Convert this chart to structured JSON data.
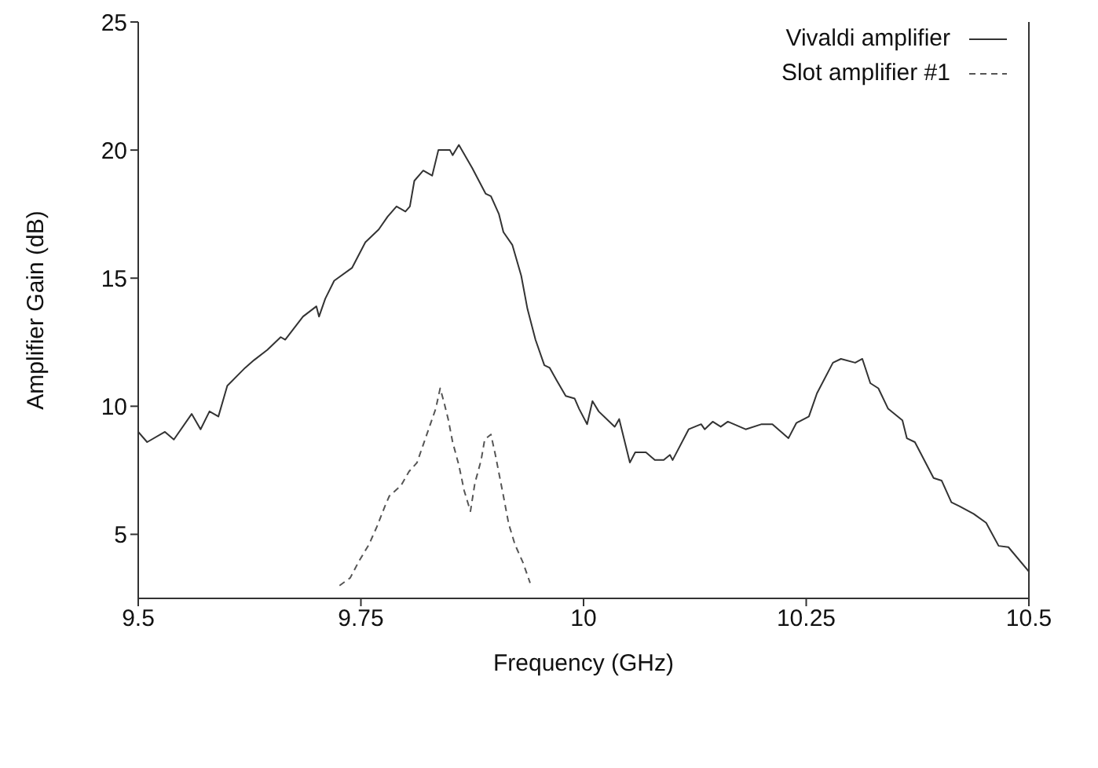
{
  "chart_data": {
    "type": "line",
    "xlabel": "Frequency (GHz)",
    "ylabel": "Amplifier Gain (dB)",
    "xlim": [
      9.5,
      10.5
    ],
    "ylim": [
      2.5,
      25
    ],
    "xticks": [
      9.5,
      9.75,
      10,
      10.25,
      10.5
    ],
    "yticks": [
      5,
      10,
      15,
      20,
      25
    ],
    "grid": false,
    "legend": "top right",
    "marker": "none",
    "series": [
      {
        "name": "Vivaldi amplifier",
        "color": "#333333",
        "line_style": "solid",
        "x": [
          9.5,
          9.51,
          9.53,
          9.54,
          9.56,
          9.57,
          9.58,
          9.59,
          9.6,
          9.62,
          9.63,
          9.645,
          9.66,
          9.665,
          9.685,
          9.7,
          9.703,
          9.71,
          9.72,
          9.74,
          9.755,
          9.77,
          9.78,
          9.79,
          9.8,
          9.805,
          9.81,
          9.82,
          9.83,
          9.837,
          9.85,
          9.853,
          9.86,
          9.875,
          9.89,
          9.896,
          9.905,
          9.91,
          9.92,
          9.93,
          9.937,
          9.946,
          9.956,
          9.962,
          9.97,
          9.98,
          9.99,
          9.995,
          10.004,
          10.01,
          10.017,
          10.035,
          10.04,
          10.052,
          10.058,
          10.07,
          10.08,
          10.09,
          10.097,
          10.1,
          10.118,
          10.132,
          10.136,
          10.145,
          10.154,
          10.162,
          10.182,
          10.2,
          10.212,
          10.23,
          10.239,
          10.253,
          10.262,
          10.28,
          10.289,
          10.305,
          10.313,
          10.322,
          10.331,
          10.342,
          10.358,
          10.363,
          10.372,
          10.393,
          10.402,
          10.413,
          10.422,
          10.438,
          10.452,
          10.466,
          10.477,
          10.5
        ],
        "values": [
          9.0,
          8.6,
          9.0,
          8.7,
          9.7,
          9.1,
          9.8,
          9.6,
          10.8,
          11.5,
          11.8,
          12.2,
          12.7,
          12.6,
          13.5,
          13.9,
          13.5,
          14.2,
          14.9,
          15.4,
          16.4,
          16.9,
          17.4,
          17.8,
          17.6,
          17.8,
          18.8,
          19.2,
          19.0,
          20.0,
          20.0,
          19.8,
          20.2,
          19.3,
          18.3,
          18.2,
          17.5,
          16.8,
          16.3,
          15.1,
          13.8,
          12.6,
          11.6,
          11.5,
          11.0,
          10.4,
          10.3,
          9.9,
          9.3,
          10.2,
          9.8,
          9.2,
          9.5,
          7.8,
          8.2,
          8.2,
          7.9,
          7.9,
          8.1,
          7.9,
          9.1,
          9.3,
          9.1,
          9.4,
          9.2,
          9.4,
          9.1,
          9.3,
          9.3,
          8.75,
          9.35,
          9.6,
          10.5,
          11.7,
          11.85,
          11.7,
          11.85,
          10.9,
          10.7,
          9.9,
          9.45,
          8.75,
          8.6,
          7.2,
          7.1,
          6.25,
          6.1,
          5.8,
          5.45,
          4.55,
          4.5,
          3.55
        ]
      },
      {
        "name": "Slot amplifier #1",
        "color": "#555555",
        "line_style": "dashed",
        "x": [
          9.726,
          9.738,
          9.747,
          9.759,
          9.768,
          9.777,
          9.782,
          9.795,
          9.804,
          9.813,
          9.818,
          9.827,
          9.834,
          9.839,
          9.843,
          9.848,
          9.853,
          9.86,
          9.866,
          9.873,
          9.878,
          9.885,
          9.889,
          9.896,
          9.901,
          9.91,
          9.916,
          9.923,
          9.932,
          9.94
        ],
        "values": [
          3.0,
          3.3,
          3.9,
          4.6,
          5.3,
          6.1,
          6.5,
          6.9,
          7.45,
          7.8,
          8.3,
          9.2,
          9.9,
          10.7,
          10.2,
          9.5,
          8.6,
          7.7,
          6.7,
          5.9,
          7.0,
          7.9,
          8.7,
          8.9,
          8.1,
          6.5,
          5.4,
          4.6,
          3.9,
          3.1
        ]
      }
    ]
  }
}
